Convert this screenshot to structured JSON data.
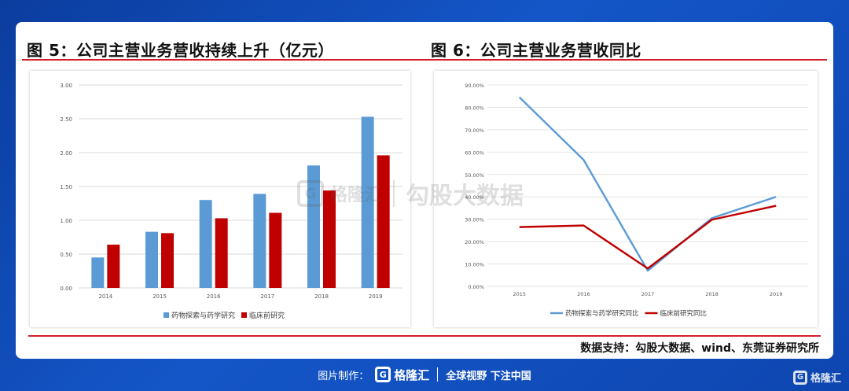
{
  "fig5_title": "图  5：公司主营业务营收持续上升（亿元）",
  "fig6_title": "图  6：公司主营业务营收同比",
  "source": "数据支持：勾股大数据、wind、东莞证券研究所",
  "watermark": {
    "logo_char": "G",
    "name": "格隆汇",
    "slogan": "勾股大数据"
  },
  "footer": {
    "label": "图片制作：",
    "logo_char": "G",
    "brand": "格隆汇",
    "slogan": "全球视野 下注中国"
  },
  "corner": {
    "logo_char": "G",
    "name": "格隆汇"
  },
  "colors": {
    "blue": "#5b9bd5",
    "red": "#c00000",
    "title_rule": "#d0202a",
    "bg": "#1456c8"
  },
  "chart_data": [
    {
      "type": "bar",
      "categories": [
        "2014",
        "2015",
        "2016",
        "2017",
        "2018",
        "2019"
      ],
      "series": [
        {
          "name": "药物探索与药学研究",
          "values": [
            0.45,
            0.83,
            1.3,
            1.39,
            1.81,
            2.53
          ],
          "color": "#5b9bd5"
        },
        {
          "name": "临床前研究",
          "values": [
            0.64,
            0.81,
            1.03,
            1.11,
            1.44,
            1.96
          ],
          "color": "#c00000"
        }
      ],
      "ylim": [
        0,
        3
      ],
      "yticks": [
        "0.00",
        "0.50",
        "1.00",
        "1.50",
        "2.00",
        "2.50",
        "3.00"
      ],
      "grid": true,
      "legend": "bottom"
    },
    {
      "type": "line",
      "categories": [
        "2015",
        "2016",
        "2017",
        "2018",
        "2019"
      ],
      "series": [
        {
          "name": "药物探索与药学研究同比",
          "values": [
            84.5,
            56.5,
            7.0,
            30.5,
            40.0
          ],
          "color": "#5b9bd5"
        },
        {
          "name": "临床前研究同比",
          "values": [
            26.5,
            27.2,
            8.0,
            29.8,
            36.0
          ],
          "color": "#c00000"
        }
      ],
      "ylim": [
        0,
        90
      ],
      "yticks": [
        "0.00%",
        "10.00%",
        "20.00%",
        "30.00%",
        "40.00%",
        "50.00%",
        "60.00%",
        "70.00%",
        "80.00%",
        "90.00%"
      ],
      "grid": true,
      "legend": "bottom"
    }
  ]
}
